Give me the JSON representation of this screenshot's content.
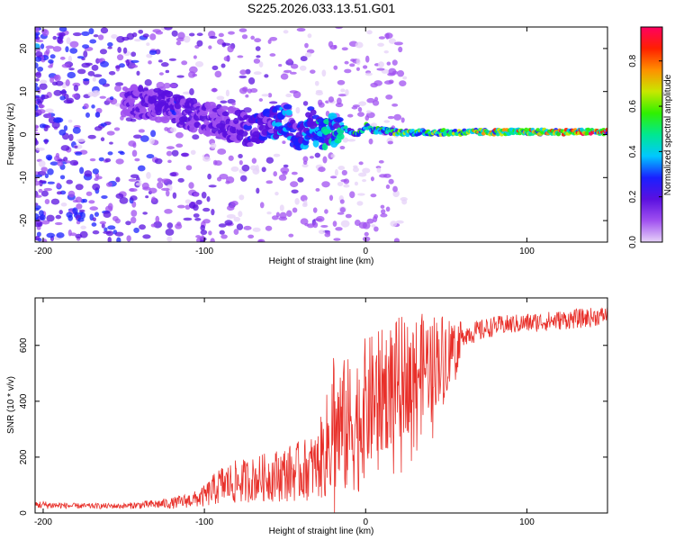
{
  "title": "S225.2026.033.13.51.G01",
  "colors": {
    "snr_line": "#e8302a",
    "frame": "#000000",
    "colorbar_stops": [
      "#e6d2f8",
      "#a050f0",
      "#5a10e0",
      "#1a20ff",
      "#00c8ff",
      "#00e890",
      "#30f000",
      "#c8e800",
      "#ff9000",
      "#ff2000",
      "#ff0060"
    ]
  },
  "chart_data": [
    {
      "type": "heatmap",
      "name": "spectrogram",
      "xlabel": "Height of straight line (km)",
      "ylabel": "Frequency (Hz)",
      "xlim": [
        -205,
        150
      ],
      "ylim": [
        -25,
        25
      ],
      "xticks": [
        -200,
        -100,
        0,
        100
      ],
      "yticks": [
        -20,
        -10,
        0,
        10,
        20
      ],
      "ridge": {
        "x": [
          -150,
          -130,
          -120,
          -110,
          -100,
          -90,
          -80,
          -70,
          -60,
          -50,
          -45,
          -40,
          -35,
          -30,
          -25,
          -20,
          -15,
          -10,
          -5,
          0,
          5,
          10,
          20,
          40,
          60,
          80,
          100,
          120,
          150
        ],
        "frequency": [
          8,
          7,
          6,
          5,
          4,
          3,
          2,
          1,
          2,
          4,
          1,
          -1,
          3,
          1,
          0,
          1,
          2,
          1,
          0,
          2,
          1,
          1,
          0.5,
          0.5,
          0.5,
          0.6,
          0.6,
          0.6,
          0.6
        ],
        "amplitude": [
          0.15,
          0.2,
          0.25,
          0.2,
          0.18,
          0.2,
          0.2,
          0.25,
          0.3,
          0.4,
          0.3,
          0.3,
          0.35,
          0.4,
          0.45,
          0.45,
          0.5,
          0.55,
          0.5,
          0.55,
          0.55,
          0.55,
          0.6,
          0.65,
          0.7,
          0.75,
          0.8,
          0.85,
          0.9
        ]
      },
      "colorbar": {
        "label": "Normalized spectral amplitude",
        "range": [
          0,
          0.95
        ],
        "ticks": [
          "0.0",
          "0.2",
          "0.4",
          "0.6",
          "0.8"
        ],
        "tick_values": [
          0,
          0.2,
          0.4,
          0.6,
          0.8
        ]
      }
    },
    {
      "type": "line",
      "name": "snr",
      "xlabel": "Height of straight line (km)",
      "ylabel": "SNR (10 * v/v)",
      "xlim": [
        -205,
        150
      ],
      "ylim": [
        0,
        770
      ],
      "xticks": [
        -200,
        -100,
        0,
        100
      ],
      "yticks": [
        0,
        200,
        400,
        600
      ],
      "series": [
        {
          "name": "SNR",
          "x": [
            -205,
            -180,
            -150,
            -120,
            -105,
            -100,
            -90,
            -80,
            -70,
            -60,
            -50,
            -40,
            -30,
            -22,
            -20,
            -18,
            -10,
            -5,
            0,
            10,
            20,
            30,
            40,
            50,
            60,
            70,
            80,
            100,
            120,
            140,
            150
          ],
          "center": [
            30,
            25,
            25,
            35,
            50,
            60,
            100,
            110,
            120,
            130,
            140,
            150,
            170,
            260,
            350,
            300,
            310,
            330,
            380,
            430,
            480,
            510,
            540,
            570,
            640,
            650,
            670,
            680,
            690,
            700,
            710
          ],
          "spread": [
            15,
            10,
            10,
            20,
            30,
            40,
            70,
            80,
            80,
            90,
            100,
            110,
            120,
            220,
            300,
            250,
            250,
            250,
            250,
            230,
            220,
            200,
            180,
            150,
            40,
            40,
            35,
            35,
            35,
            35,
            30
          ]
        }
      ]
    }
  ]
}
